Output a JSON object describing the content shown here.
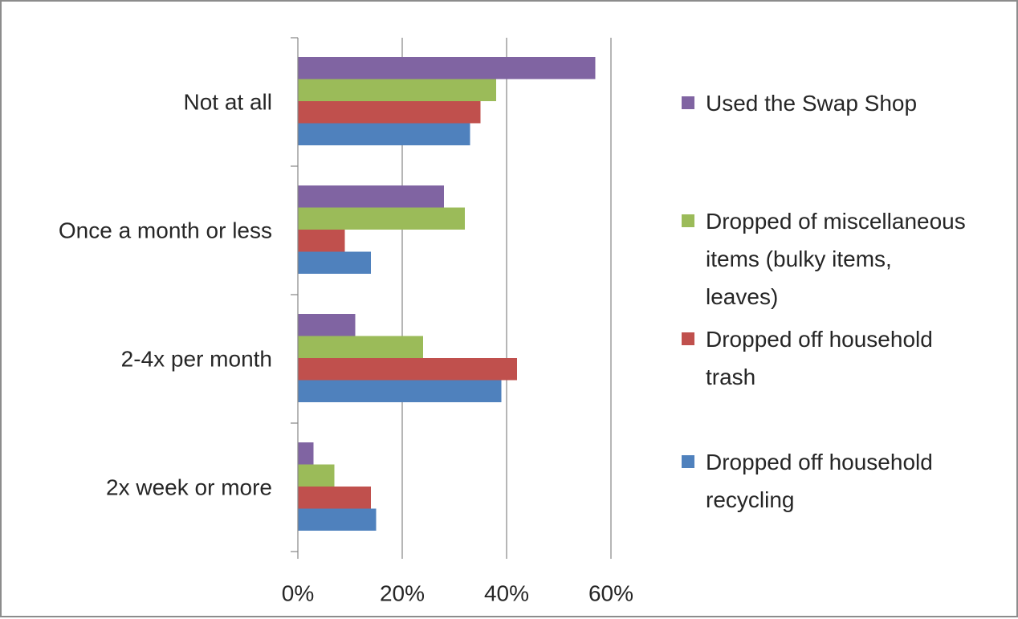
{
  "chart_data": {
    "type": "bar",
    "orientation": "horizontal",
    "title": "",
    "xlabel": "",
    "ylabel": "",
    "categories": [
      "Not at all",
      "Once a month or less",
      "2-4x per month",
      "2x week or more"
    ],
    "series": [
      {
        "name": "Dropped off household recycling",
        "color": "#4f81bd",
        "values": [
          33,
          14,
          39,
          15
        ]
      },
      {
        "name": "Dropped off household trash",
        "color": "#c0504d",
        "values": [
          35,
          9,
          42,
          14
        ]
      },
      {
        "name": "Dropped of miscellaneous items (bulky items, leaves)",
        "color": "#9bbb59",
        "values": [
          38,
          32,
          24,
          7
        ]
      },
      {
        "name": "Used the Swap Shop",
        "color": "#8064a2",
        "values": [
          57,
          28,
          11,
          3
        ]
      }
    ],
    "xlim": [
      0,
      60
    ],
    "x_ticks": [
      0,
      20,
      40,
      60
    ],
    "x_tick_labels": [
      "0%",
      "20%",
      "40%",
      "60%"
    ],
    "grid": true,
    "legend_position": "right",
    "legend_order": "reverse",
    "legend_lines": [
      [
        "Used the Swap Shop"
      ],
      [
        "Dropped of miscellaneous",
        "items (bulky items,",
        "leaves)"
      ],
      [
        "Dropped off household",
        "trash"
      ],
      [
        "Dropped off household",
        "recycling"
      ]
    ]
  }
}
